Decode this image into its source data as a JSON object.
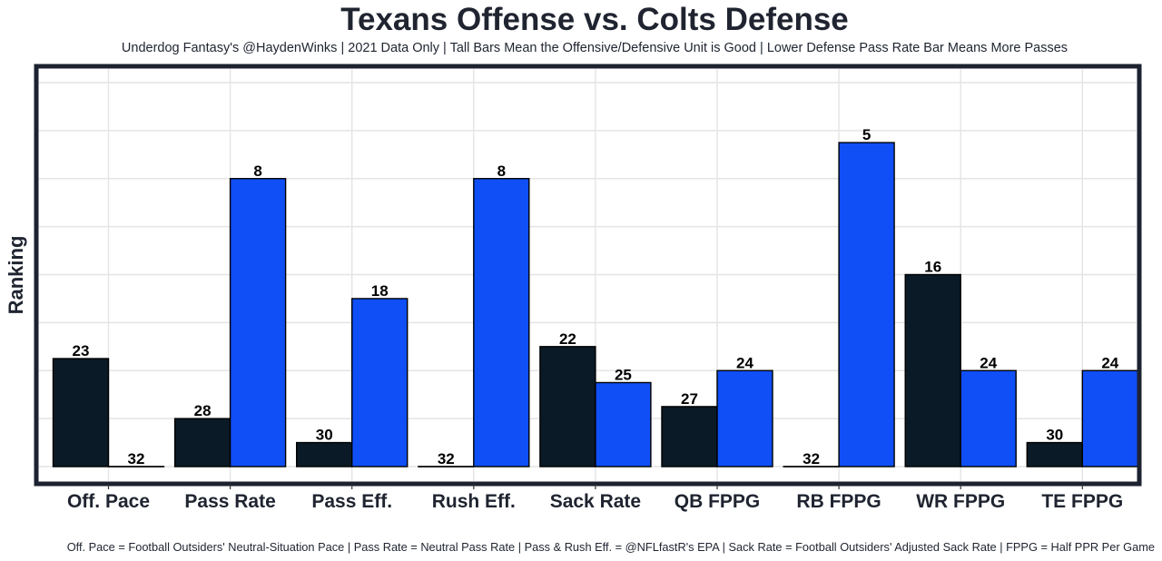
{
  "chart_data": {
    "type": "bar",
    "title": "Texans Offense vs. Colts Defense",
    "subtitle": "Underdog Fantasy's @HaydenWinks | 2021 Data Only | Tall Bars Mean the Offensive/Defensive Unit is Good | Lower Defense Pass Rate Bar Means More Passes",
    "caption": "Off. Pace = Football Outsiders' Neutral-Situation Pace | Pass Rate = Neutral Pass Rate | Pass & Rush Eff. = @NFLfastR's EPA | Sack Rate = Football Outsiders' Adjusted Sack Rate | FPPG = Half PPR Per Game",
    "xlabel": "",
    "ylabel": "Ranking",
    "categories": [
      "Off. Pace",
      "Pass Rate",
      "Pass Eff.",
      "Rush Eff.",
      "Sack Rate",
      "QB FPPG",
      "RB FPPG",
      "WR FPPG",
      "TE FPPG"
    ],
    "bar_height_rule": "33 minus rank (taller = better)",
    "series": [
      {
        "name": "Texans Offense",
        "color": "#0a1a26",
        "values": [
          23,
          28,
          30,
          32,
          22,
          27,
          32,
          16,
          30
        ]
      },
      {
        "name": "Colts Defense",
        "color": "#0f4ff5",
        "values": [
          32,
          8,
          18,
          8,
          25,
          24,
          5,
          24,
          24
        ]
      }
    ],
    "ylim": [
      0,
      32
    ],
    "y_ticks_shown": false,
    "grid": true,
    "legend": "none"
  }
}
